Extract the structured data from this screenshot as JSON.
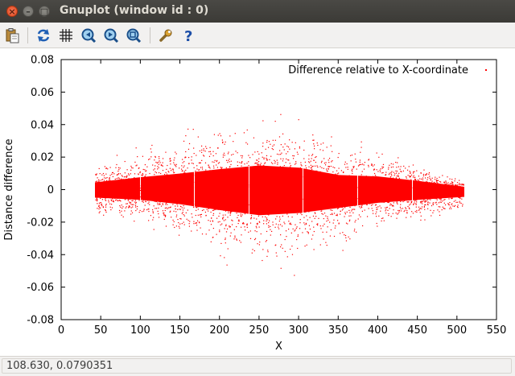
{
  "window": {
    "title": "Gnuplot (window id : 0)",
    "close_glyph": "×",
    "minimize_glyph": "–",
    "maximize_glyph": "□"
  },
  "toolbar": {
    "items": [
      {
        "name": "copy-to-clipboard-icon"
      },
      {
        "name": "replot-icon"
      },
      {
        "name": "toggle-grid-icon"
      },
      {
        "name": "zoom-previous-icon"
      },
      {
        "name": "zoom-next-icon"
      },
      {
        "name": "autoscale-icon"
      },
      {
        "name": "settings-icon"
      },
      {
        "name": "help-icon"
      }
    ]
  },
  "chart_data": {
    "type": "scatter",
    "title": "",
    "legend_label": "Difference relative to X-coordinate",
    "legend_placement": "top-right",
    "xlabel": "X",
    "ylabel": "Distance difference",
    "xlim": [
      0,
      550
    ],
    "ylim": [
      -0.08,
      0.08
    ],
    "x_ticks": [
      "0",
      "50",
      "100",
      "150",
      "200",
      "250",
      "300",
      "350",
      "400",
      "450",
      "500",
      "550"
    ],
    "y_ticks": [
      "0.08",
      "0.06",
      "0.04",
      "0.02",
      "0",
      "-0.02",
      "-0.04",
      "-0.06",
      "-0.08"
    ],
    "grid": false,
    "series": [
      {
        "color": "#ff0000",
        "x_range": [
          43,
          508
        ],
        "envelope": [
          {
            "x": 43,
            "low": -0.011,
            "high": 0.01
          },
          {
            "x": 100,
            "low": -0.014,
            "high": 0.017
          },
          {
            "x": 150,
            "low": -0.02,
            "high": 0.022
          },
          {
            "x": 200,
            "low": -0.028,
            "high": 0.028
          },
          {
            "x": 250,
            "low": -0.035,
            "high": 0.033
          },
          {
            "x": 300,
            "low": -0.032,
            "high": 0.03
          },
          {
            "x": 350,
            "low": -0.025,
            "high": 0.02
          },
          {
            "x": 400,
            "low": -0.018,
            "high": 0.018
          },
          {
            "x": 450,
            "low": -0.014,
            "high": 0.012
          },
          {
            "x": 508,
            "low": -0.01,
            "high": 0.004
          }
        ],
        "gaps_at_x": [
          100,
          168,
          237,
          305,
          374,
          443
        ]
      }
    ]
  },
  "status": {
    "coordinates": "108.630,  0.0790351"
  }
}
